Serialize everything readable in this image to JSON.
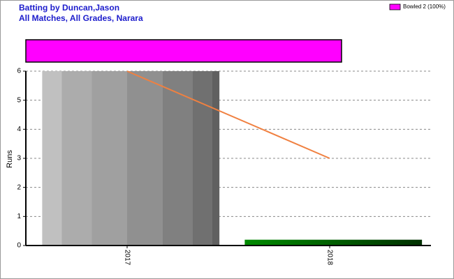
{
  "title": "Batting by Duncan,Jason",
  "subtitle": "All Matches, All Grades, Narara",
  "chart_data": [
    {
      "type": "share-bar",
      "series": [
        {
          "name": "Bowled 2 (100%)",
          "color": "#ff00ff",
          "values": [
            100
          ]
        }
      ],
      "xlim": [
        0,
        100
      ]
    },
    {
      "type": "bar-line",
      "ylabel": "Runs",
      "categories": [
        "2017",
        "2018"
      ],
      "series": [
        {
          "type": "bar",
          "values": [
            6,
            0.2
          ]
        },
        {
          "type": "line",
          "color": "#f08040",
          "values": [
            6,
            3
          ]
        }
      ],
      "ylim": [
        0,
        6
      ],
      "yticks": [
        0,
        1,
        2,
        3,
        4,
        5,
        6
      ],
      "grid": true
    }
  ]
}
